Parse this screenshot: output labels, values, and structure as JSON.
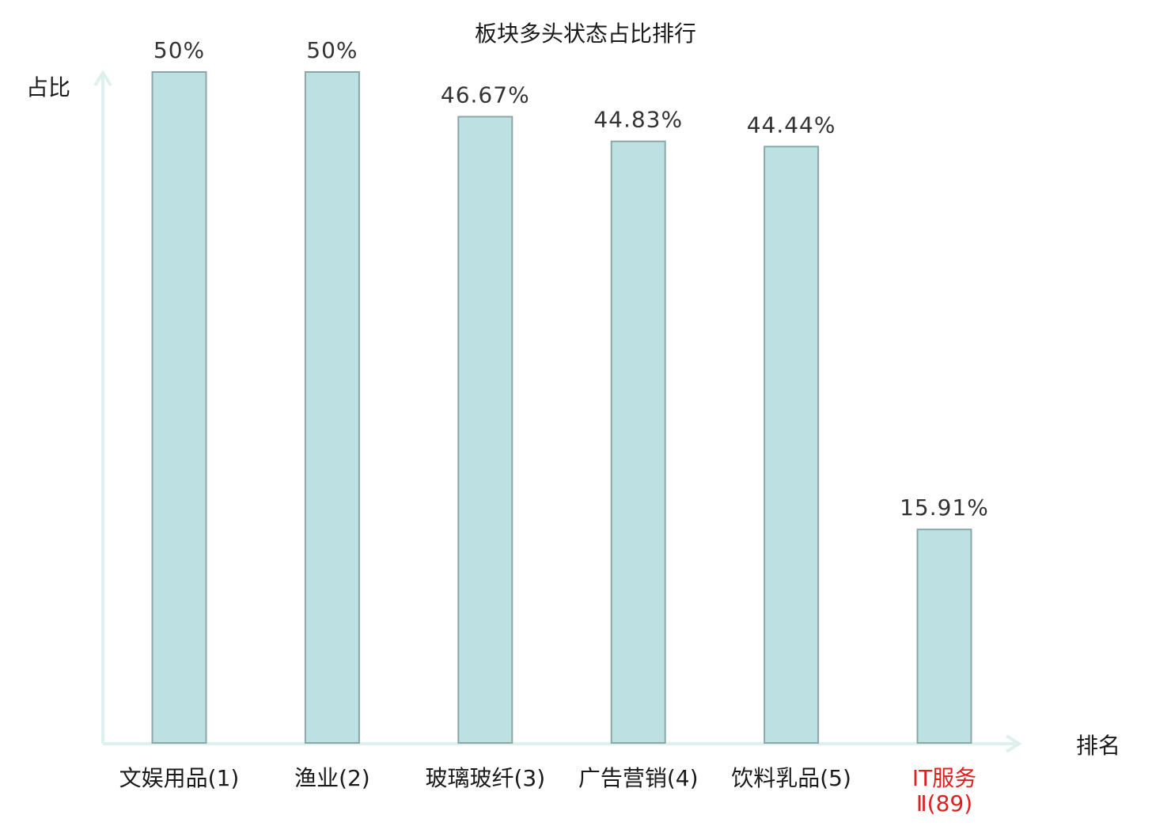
{
  "chart_data": {
    "type": "bar",
    "title": "板块多头状态占比排行",
    "xlabel": "排名",
    "ylabel": "占比",
    "ylim": [
      0,
      50
    ],
    "grid": false,
    "legend": "none",
    "categories": [
      {
        "lines": [
          "文娱用品(1)"
        ],
        "highlight": false
      },
      {
        "lines": [
          "渔业(2)"
        ],
        "highlight": false
      },
      {
        "lines": [
          "玻璃玻纤(3)"
        ],
        "highlight": false
      },
      {
        "lines": [
          "广告营销(4)"
        ],
        "highlight": false
      },
      {
        "lines": [
          "饮料乳品(5)"
        ],
        "highlight": false
      },
      {
        "lines": [
          "IT服务",
          "Ⅱ(89)"
        ],
        "highlight": true
      }
    ],
    "values": [
      50,
      50,
      46.67,
      44.83,
      44.44,
      15.91
    ],
    "value_labels": [
      "50%",
      "50%",
      "46.67%",
      "44.83%",
      "44.44%",
      "15.91%"
    ]
  },
  "colors": {
    "bar_fill": "#bde1e3",
    "bar_stroke": "#8aa7a8",
    "axis": "#dff1ef",
    "text": "#1a1a1a",
    "value_text": "#333333",
    "highlight_text": "#e02020"
  }
}
